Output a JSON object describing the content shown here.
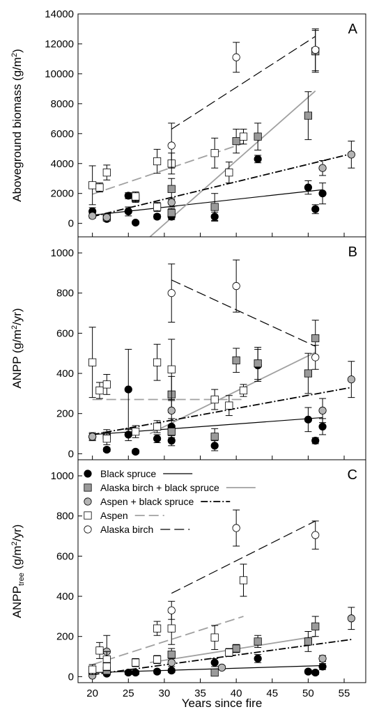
{
  "colors": {
    "black_spruce": "#000000",
    "birch_spruce": "#9a9a9a",
    "aspen_spruce": "#b4b4b4",
    "aspen": "#ffffff",
    "alaska_birch": "#ffffff",
    "gray_line": "#a0a0a0"
  },
  "x_axis": {
    "label": "Years since fire",
    "range": [
      18,
      58
    ],
    "ticks": [
      20,
      25,
      30,
      35,
      40,
      45,
      50,
      55
    ],
    "tick_labels": [
      "20",
      "25",
      "30",
      "35",
      "40",
      "45",
      "50",
      "55"
    ]
  },
  "legend": {
    "placement": "top-left of panel C",
    "entries": [
      {
        "key": "black_spruce",
        "label": "Black spruce",
        "marker": "filled-circle",
        "line": "solid-black"
      },
      {
        "key": "birch_spruce",
        "label": "Alaska birch + black spruce",
        "marker": "gray-square",
        "line": "solid-gray"
      },
      {
        "key": "aspen_spruce",
        "label": "Aspen + black spruce",
        "marker": "gray-circle",
        "line": "dash-dot-black"
      },
      {
        "key": "aspen",
        "label": "Aspen",
        "marker": "open-square",
        "line": "dashed-gray"
      },
      {
        "key": "alaska_birch",
        "label": "Alaska birch",
        "marker": "open-circle",
        "line": "dashed-black"
      }
    ]
  },
  "chart_data": [
    {
      "type": "scatter",
      "panel": "A",
      "ylabel": "Aboveground biomass (g/m2)",
      "ylabel_main": "Aboveground biomass (g/m",
      "ylabel_sup": "2",
      "ylabel_end": ")",
      "ylim": [
        -900,
        14000
      ],
      "yticks": [
        0,
        2000,
        4000,
        6000,
        8000,
        10000,
        12000,
        14000
      ],
      "ytick_labels": [
        "0",
        "2000",
        "4000",
        "6000",
        "8000",
        "10000",
        "12000",
        "14000"
      ],
      "series": [
        {
          "key": "black_spruce",
          "points": [
            {
              "x": 20,
              "y": 800,
              "err": 250
            },
            {
              "x": 22,
              "y": 300,
              "err": 150
            },
            {
              "x": 25,
              "y": 800,
              "err": 300
            },
            {
              "x": 25,
              "y": 1850,
              "err": 200
            },
            {
              "x": 26,
              "y": 50,
              "err": 50
            },
            {
              "x": 29,
              "y": 450,
              "err": 150
            },
            {
              "x": 31,
              "y": 450,
              "err": 200
            },
            {
              "x": 37,
              "y": 450,
              "err": 300
            },
            {
              "x": 43,
              "y": 4300,
              "err": 250
            },
            {
              "x": 50,
              "y": 2400,
              "err": 450
            },
            {
              "x": 51,
              "y": 950,
              "err": 300
            },
            {
              "x": 52,
              "y": 2000,
              "err": 700
            }
          ],
          "fit": [
            [
              20,
              550
            ],
            [
              52,
              2250
            ]
          ]
        },
        {
          "key": "birch_spruce",
          "points": [
            {
              "x": 22,
              "y": 400,
              "err": 200
            },
            {
              "x": 26,
              "y": 1700,
              "err": 300
            },
            {
              "x": 31,
              "y": 2300,
              "err": 700
            },
            {
              "x": 31,
              "y": 700,
              "err": 300
            },
            {
              "x": 37,
              "y": 1100,
              "err": 900
            },
            {
              "x": 40,
              "y": 5500,
              "err": 800
            },
            {
              "x": 43,
              "y": 5800,
              "err": 900
            },
            {
              "x": 50,
              "y": 7200,
              "err": 1600
            },
            {
              "x": 51,
              "y": 11500,
              "err": 1400
            }
          ],
          "fit": [
            [
              28,
              -900
            ],
            [
              51,
              8850
            ]
          ]
        },
        {
          "key": "aspen_spruce",
          "points": [
            {
              "x": 20,
              "y": 500,
              "err": 150
            },
            {
              "x": 22,
              "y": 400,
              "err": 150
            },
            {
              "x": 31,
              "y": 1400,
              "err": 300
            },
            {
              "x": 52,
              "y": 3700,
              "err": 500
            },
            {
              "x": 56,
              "y": 4600,
              "err": 900
            }
          ],
          "fit": [
            [
              20,
              450
            ],
            [
              56,
              4650
            ]
          ]
        },
        {
          "key": "aspen",
          "points": [
            {
              "x": 20,
              "y": 2550,
              "err": 1300
            },
            {
              "x": 21,
              "y": 2400,
              "err": 300
            },
            {
              "x": 22,
              "y": 3400,
              "err": 500
            },
            {
              "x": 26,
              "y": 1800,
              "err": 300
            },
            {
              "x": 29,
              "y": 4150,
              "err": 800
            },
            {
              "x": 31,
              "y": 4000,
              "err": 700
            },
            {
              "x": 37,
              "y": 4700,
              "err": 1000
            },
            {
              "x": 39,
              "y": 3400,
              "err": 700
            },
            {
              "x": 41,
              "y": 5800,
              "err": 500
            },
            {
              "x": 29,
              "y": 1100,
              "err": 300
            }
          ],
          "fit": [
            [
              20,
              1950
            ],
            [
              41,
              5350
            ]
          ]
        },
        {
          "key": "alaska_birch",
          "points": [
            {
              "x": 31,
              "y": 5200,
              "err": 1500
            },
            {
              "x": 40,
              "y": 11100,
              "err": 1000
            },
            {
              "x": 51,
              "y": 11600,
              "err": 1400
            }
          ],
          "fit": [
            [
              31,
              6300
            ],
            [
              51,
              12500
            ]
          ]
        }
      ]
    },
    {
      "type": "scatter",
      "panel": "B",
      "ylabel": "ANPP (g/m2/yr)",
      "ylabel_main": "ANPP (g/m",
      "ylabel_sup": "2",
      "ylabel_end": "/yr)",
      "ylim": [
        -30,
        1080
      ],
      "yticks": [
        0,
        200,
        400,
        600,
        800,
        1000
      ],
      "ytick_labels": [
        "0",
        "200",
        "400",
        "600",
        "800",
        "1000"
      ],
      "series": [
        {
          "key": "black_spruce",
          "points": [
            {
              "x": 20,
              "y": 85,
              "err": 20
            },
            {
              "x": 22,
              "y": 20,
              "err": 10
            },
            {
              "x": 25,
              "y": 320,
              "err": 200
            },
            {
              "x": 25,
              "y": 95,
              "err": 30
            },
            {
              "x": 26,
              "y": 10,
              "err": 10
            },
            {
              "x": 29,
              "y": 75,
              "err": 20
            },
            {
              "x": 31,
              "y": 65,
              "err": 25
            },
            {
              "x": 31,
              "y": 135,
              "err": 40
            },
            {
              "x": 37,
              "y": 40,
              "err": 25
            },
            {
              "x": 43,
              "y": 440,
              "err": 80
            },
            {
              "x": 50,
              "y": 170,
              "err": 60
            },
            {
              "x": 51,
              "y": 65,
              "err": 15
            },
            {
              "x": 52,
              "y": 135,
              "err": 40
            }
          ],
          "fit": [
            [
              20,
              95
            ],
            [
              52,
              180
            ]
          ]
        },
        {
          "key": "birch_spruce",
          "points": [
            {
              "x": 22,
              "y": 90,
              "err": 30
            },
            {
              "x": 31,
              "y": 295,
              "err": 90
            },
            {
              "x": 31,
              "y": 110,
              "err": 30
            },
            {
              "x": 37,
              "y": 85,
              "err": 40
            },
            {
              "x": 40,
              "y": 465,
              "err": 60
            },
            {
              "x": 43,
              "y": 450,
              "err": 80
            },
            {
              "x": 50,
              "y": 400,
              "err": 100
            },
            {
              "x": 51,
              "y": 575,
              "err": 90
            }
          ],
          "fit": [
            [
              28,
              100
            ],
            [
              51,
              505
            ]
          ]
        },
        {
          "key": "aspen_spruce",
          "points": [
            {
              "x": 20,
              "y": 85,
              "err": 15
            },
            {
              "x": 22,
              "y": 85,
              "err": 15
            },
            {
              "x": 31,
              "y": 215,
              "err": 50
            },
            {
              "x": 52,
              "y": 215,
              "err": 60
            },
            {
              "x": 56,
              "y": 370,
              "err": 90
            }
          ],
          "fit": [
            [
              20,
              95
            ],
            [
              56,
              330
            ]
          ]
        },
        {
          "key": "aspen",
          "points": [
            {
              "x": 20,
              "y": 455,
              "err": 175
            },
            {
              "x": 21,
              "y": 315,
              "err": 40
            },
            {
              "x": 22,
              "y": 345,
              "err": 50
            },
            {
              "x": 22,
              "y": 75,
              "err": 30
            },
            {
              "x": 26,
              "y": 110,
              "err": 30
            },
            {
              "x": 29,
              "y": 455,
              "err": 90
            },
            {
              "x": 29,
              "y": 135,
              "err": 30
            },
            {
              "x": 31,
              "y": 420,
              "err": 150
            },
            {
              "x": 37,
              "y": 270,
              "err": 50
            },
            {
              "x": 39,
              "y": 240,
              "err": 50
            },
            {
              "x": 41,
              "y": 315,
              "err": 30
            }
          ],
          "fit": [
            [
              20,
              270
            ],
            [
              41,
              270
            ]
          ]
        },
        {
          "key": "alaska_birch",
          "points": [
            {
              "x": 31,
              "y": 800,
              "err": 145
            },
            {
              "x": 40,
              "y": 835,
              "err": 130
            },
            {
              "x": 51,
              "y": 480,
              "err": 60
            }
          ],
          "fit": [
            [
              31,
              865
            ],
            [
              51,
              535
            ]
          ]
        }
      ]
    },
    {
      "type": "scatter",
      "panel": "C",
      "ylabel": "ANPPtree (g/m2/yr)",
      "ylabel_main": "ANPP",
      "ylabel_subscript": "tree",
      "ylabel_paren": " (g/m",
      "ylabel_sup": "2",
      "ylabel_end": "/yr)",
      "ylim": [
        -30,
        1080
      ],
      "yticks": [
        0,
        200,
        400,
        600,
        800,
        1000
      ],
      "ytick_labels": [
        "0",
        "200",
        "400",
        "600",
        "800",
        "1000"
      ],
      "series": [
        {
          "key": "black_spruce",
          "points": [
            {
              "x": 20,
              "y": 15,
              "err": 10
            },
            {
              "x": 22,
              "y": 15,
              "err": 10
            },
            {
              "x": 25,
              "y": 20,
              "err": 10
            },
            {
              "x": 26,
              "y": 20,
              "err": 10
            },
            {
              "x": 29,
              "y": 25,
              "err": 10
            },
            {
              "x": 31,
              "y": 30,
              "err": 10
            },
            {
              "x": 37,
              "y": 70,
              "err": 20
            },
            {
              "x": 43,
              "y": 90,
              "err": 20
            },
            {
              "x": 50,
              "y": 25,
              "err": 10
            },
            {
              "x": 51,
              "y": 20,
              "err": 10
            },
            {
              "x": 52,
              "y": 50,
              "err": 15
            }
          ],
          "fit": [
            [
              20,
              20
            ],
            [
              52,
              55
            ]
          ]
        },
        {
          "key": "birch_spruce",
          "points": [
            {
              "x": 22,
              "y": 30,
              "err": 15
            },
            {
              "x": 31,
              "y": 110,
              "err": 30
            },
            {
              "x": 37,
              "y": 20,
              "err": 10
            },
            {
              "x": 40,
              "y": 140,
              "err": 20
            },
            {
              "x": 43,
              "y": 175,
              "err": 30
            },
            {
              "x": 50,
              "y": 175,
              "err": 50
            },
            {
              "x": 51,
              "y": 250,
              "err": 50
            }
          ],
          "fit": [
            [
              28,
              70
            ],
            [
              51,
              200
            ]
          ]
        },
        {
          "key": "aspen_spruce",
          "points": [
            {
              "x": 20,
              "y": 5,
              "err": 5
            },
            {
              "x": 22,
              "y": 125,
              "err": 80
            },
            {
              "x": 31,
              "y": 70,
              "err": 20
            },
            {
              "x": 38,
              "y": 45,
              "err": 10
            },
            {
              "x": 52,
              "y": 90,
              "err": 15
            },
            {
              "x": 56,
              "y": 290,
              "err": 55
            }
          ],
          "fit": [
            [
              20,
              10
            ],
            [
              56,
              185
            ]
          ]
        },
        {
          "key": "aspen",
          "points": [
            {
              "x": 20,
              "y": 35,
              "err": 25
            },
            {
              "x": 21,
              "y": 130,
              "err": 40
            },
            {
              "x": 22,
              "y": 85,
              "err": 40
            },
            {
              "x": 22,
              "y": 50,
              "err": 20
            },
            {
              "x": 26,
              "y": 70,
              "err": 20
            },
            {
              "x": 29,
              "y": 240,
              "err": 35
            },
            {
              "x": 29,
              "y": 85,
              "err": 20
            },
            {
              "x": 31,
              "y": 240,
              "err": 80
            },
            {
              "x": 37,
              "y": 195,
              "err": 60
            },
            {
              "x": 39,
              "y": 120,
              "err": 20
            },
            {
              "x": 41,
              "y": 480,
              "err": 80
            }
          ],
          "fit": [
            [
              20,
              60
            ],
            [
              41,
              300
            ]
          ]
        },
        {
          "key": "alaska_birch",
          "points": [
            {
              "x": 31,
              "y": 330,
              "err": 45
            },
            {
              "x": 40,
              "y": 740,
              "err": 90
            },
            {
              "x": 51,
              "y": 705,
              "err": 70
            }
          ],
          "fit": [
            [
              31,
              415
            ],
            [
              51,
              775
            ]
          ]
        }
      ]
    }
  ]
}
